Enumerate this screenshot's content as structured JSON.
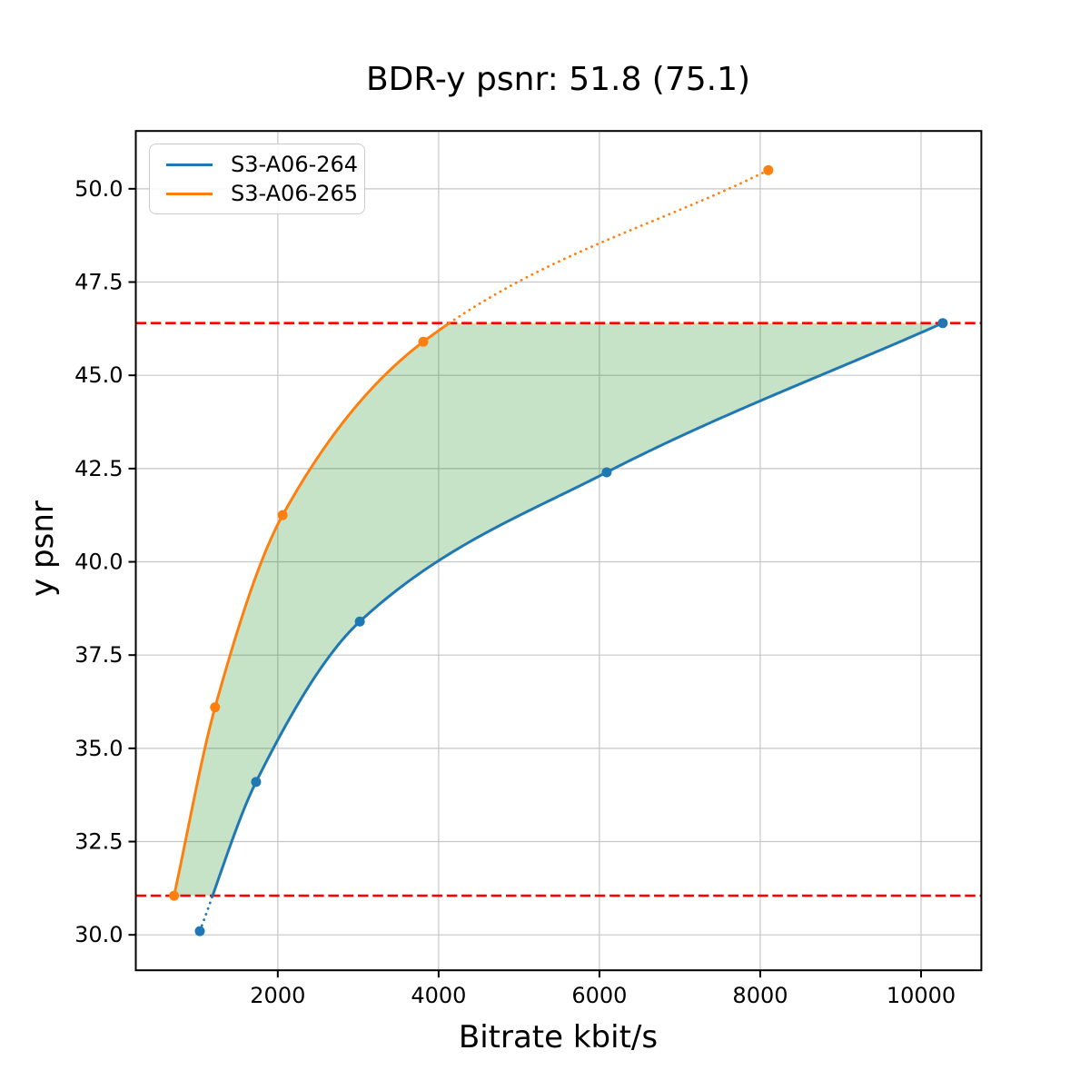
{
  "title": "BDR-y psnr: 51.8 (75.1)",
  "axes": {
    "xlabel": "Bitrate kbit/s",
    "ylabel": "y psnr"
  },
  "legend": {
    "position": "upper left",
    "items": [
      {
        "label": "S3-A06-264",
        "color": "#1f77b4"
      },
      {
        "label": "S3-A06-265",
        "color": "#ff7f0e"
      }
    ]
  },
  "chart_data": {
    "type": "line",
    "title": "BDR-y psnr: 51.8 (75.1)",
    "xlabel": "Bitrate kbit/s",
    "ylabel": "y psnr",
    "xlim": [
      234,
      10750
    ],
    "ylim": [
      29.05,
      51.55
    ],
    "x_ticks": [
      2000,
      4000,
      6000,
      8000,
      10000
    ],
    "y_ticks": [
      30.0,
      32.5,
      35.0,
      37.5,
      40.0,
      42.5,
      45.0,
      47.5,
      50.0
    ],
    "grid": true,
    "grid_color": "#c6c6c6",
    "series": [
      {
        "name": "S3-A06-264",
        "color": "#1f77b4",
        "points": [
          [
            1030,
            30.1
          ],
          [
            1730,
            34.1
          ],
          [
            3020,
            38.4
          ],
          [
            6090,
            42.4
          ],
          [
            10270,
            46.4
          ]
        ]
      },
      {
        "name": "S3-A06-265",
        "color": "#ff7f0e",
        "points": [
          [
            710,
            31.05
          ],
          [
            1220,
            36.1
          ],
          [
            2060,
            41.25
          ],
          [
            3810,
            45.9
          ],
          [
            8100,
            50.5
          ]
        ]
      }
    ],
    "overlap_lines": {
      "color": "#ff0000",
      "lower": 31.05,
      "upper": 46.4,
      "style": "dashed"
    },
    "fill_between": {
      "color": "#008000",
      "opacity": 0.22
    }
  }
}
